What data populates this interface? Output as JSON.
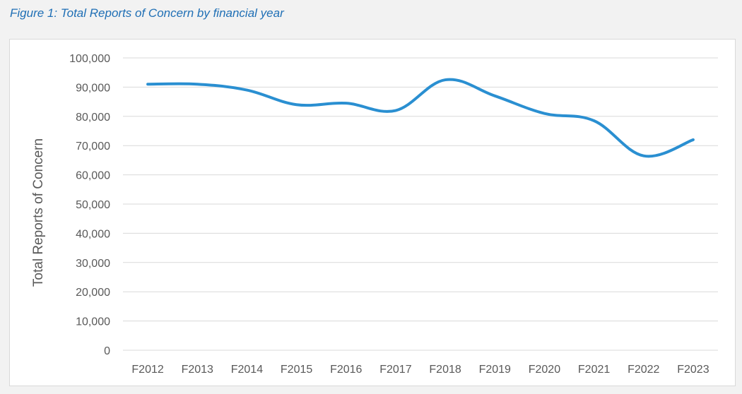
{
  "caption": "Figure 1: Total Reports of Concern by financial year",
  "colors": {
    "line": "#2a8fd1",
    "grid": "#d9d9d9",
    "caption": "#1f6fb5"
  },
  "chart_data": {
    "type": "line",
    "title": "",
    "xlabel": "",
    "ylabel": "Total Reports of Concern",
    "ylim": [
      0,
      100000
    ],
    "yticks": [
      0,
      10000,
      20000,
      30000,
      40000,
      50000,
      60000,
      70000,
      80000,
      90000,
      100000
    ],
    "ytick_labels": [
      "0",
      "10,000",
      "20,000",
      "30,000",
      "40,000",
      "50,000",
      "60,000",
      "70,000",
      "80,000",
      "90,000",
      "100,000"
    ],
    "grid": true,
    "legend": "none",
    "categories": [
      "F2012",
      "F2013",
      "F2014",
      "F2015",
      "F2016",
      "F2017",
      "F2018",
      "F2019",
      "F2020",
      "F2021",
      "F2022",
      "F2023"
    ],
    "series": [
      {
        "name": "",
        "values": [
          91000,
          91000,
          89000,
          84000,
          84500,
          82000,
          92500,
          87000,
          81000,
          78500,
          66500,
          72000
        ]
      }
    ]
  }
}
